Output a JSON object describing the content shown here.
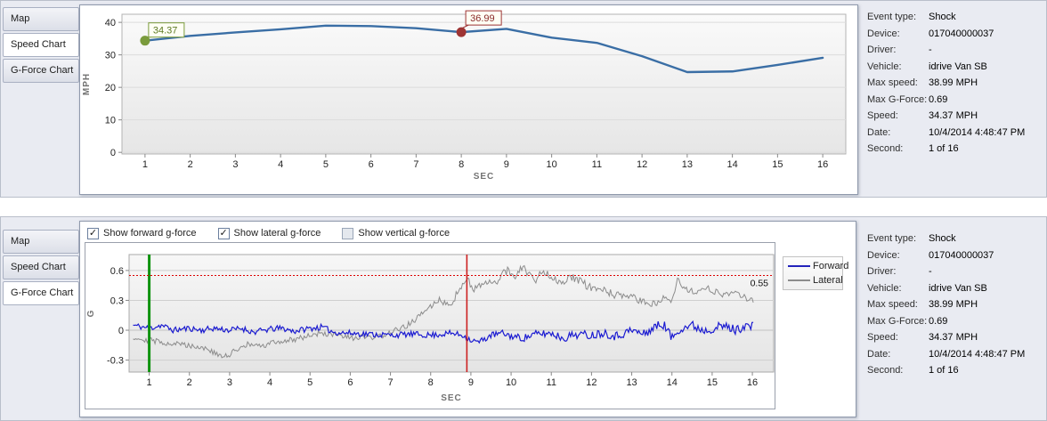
{
  "event_info": {
    "rows": [
      {
        "label": "Event type:",
        "value": "Shock"
      },
      {
        "label": "Device:",
        "value": "017040000037"
      },
      {
        "label": "Driver:",
        "value": "-"
      },
      {
        "label": "Vehicle:",
        "value": "idrive Van SB"
      },
      {
        "label": "Max speed:",
        "value": "38.99 MPH"
      },
      {
        "label": "Max G-Force:",
        "value": "0.69"
      },
      {
        "label": "Speed:",
        "value": "34.37 MPH"
      },
      {
        "label": "Date:",
        "value": "10/4/2014 4:48:47 PM"
      },
      {
        "label": "Second:",
        "value": "1 of 16"
      }
    ]
  },
  "speed_panel": {
    "tabs": [
      {
        "label": "Map",
        "selected": false
      },
      {
        "label": "Speed Chart",
        "selected": true
      },
      {
        "label": "G-Force Chart",
        "selected": false
      }
    ]
  },
  "gforce_panel": {
    "tabs": [
      {
        "label": "Map",
        "selected": false
      },
      {
        "label": "Speed Chart",
        "selected": false
      },
      {
        "label": "G-Force Chart",
        "selected": true
      }
    ],
    "checkboxes": [
      {
        "label": "Show forward g-force",
        "checked": true
      },
      {
        "label": "Show lateral g-force",
        "checked": true
      },
      {
        "label": "Show vertical g-force",
        "checked": false
      }
    ],
    "legend": {
      "position": "right",
      "items": [
        {
          "label": "Forward",
          "color": "#2323bb"
        },
        {
          "label": "Lateral",
          "color": "#8c8c8c"
        }
      ]
    }
  },
  "chart_data": [
    {
      "type": "line",
      "xlabel": "SEC",
      "ylabel": "MPH",
      "x": [
        1,
        2,
        3,
        4,
        5,
        6,
        7,
        8,
        9,
        10,
        11,
        12,
        13,
        14,
        15,
        16
      ],
      "values": [
        34.37,
        35.85,
        36.9,
        37.85,
        38.99,
        38.85,
        38.2,
        36.99,
        38.0,
        35.3,
        33.7,
        29.6,
        24.7,
        24.9,
        26.9,
        29.1
      ],
      "xlim": [
        0.49,
        16.51
      ],
      "ylim": [
        -0.5,
        42.5
      ],
      "xticks": [
        1,
        2,
        3,
        4,
        5,
        6,
        7,
        8,
        9,
        10,
        11,
        12,
        13,
        14,
        15,
        16
      ],
      "yticks": [
        0,
        10,
        20,
        30,
        40
      ],
      "grid": "horizontal",
      "line_color": "#3a6ea5",
      "markers": [
        {
          "x": 1,
          "y": 34.37,
          "label": "34.37",
          "color": "#7a9b3c",
          "text_color": "#5d7a22",
          "box_dx": 4,
          "box_dy": -20
        },
        {
          "x": 8,
          "y": 36.99,
          "label": "36.99",
          "color": "#9e3434",
          "text_color": "#8a2a2a",
          "box_dx": 5,
          "box_dy": -24
        }
      ]
    },
    {
      "type": "line",
      "xlabel": "SEC",
      "ylabel": "G",
      "xlim": [
        0.5,
        16.53
      ],
      "ylim": [
        -0.42,
        0.76
      ],
      "xticks": [
        1,
        2,
        3,
        4,
        5,
        6,
        7,
        8,
        9,
        10,
        11,
        12,
        13,
        14,
        15,
        16
      ],
      "yticks": [
        -0.3,
        0,
        0.3,
        0.6
      ],
      "grid": "horizontal",
      "threshold": {
        "y": 0.55,
        "label": "0.55",
        "color": "#dd0000"
      },
      "vlines": [
        {
          "x": 1,
          "color": "#0f930f",
          "width": 3,
          "name": "current-second-line"
        },
        {
          "x": 8.9,
          "color": "#cc2020",
          "width": 1.6,
          "name": "shock-moment-line"
        }
      ],
      "series": [
        {
          "name": "Forward",
          "color": "#1b1bd1",
          "stroke_width": 1.2,
          "seed": 11,
          "keypoints": [
            [
              0.6,
              0.05
            ],
            [
              1,
              0.02
            ],
            [
              1.3,
              0.05
            ],
            [
              1.6,
              0.0
            ],
            [
              2,
              0.02
            ],
            [
              2.3,
              0.0
            ],
            [
              2.6,
              0.02
            ],
            [
              3,
              0.0
            ],
            [
              3.3,
              0.02
            ],
            [
              3.6,
              -0.02
            ],
            [
              4,
              0.01
            ],
            [
              4.3,
              0.02
            ],
            [
              4.6,
              -0.01
            ],
            [
              5,
              0.02
            ],
            [
              5.3,
              0.03
            ],
            [
              5.6,
              -0.02
            ],
            [
              6,
              -0.03
            ],
            [
              6.5,
              -0.04
            ],
            [
              7,
              -0.05
            ],
            [
              7.5,
              -0.04
            ],
            [
              8,
              -0.05
            ],
            [
              8.5,
              -0.03
            ],
            [
              8.8,
              -0.05
            ],
            [
              9,
              -0.1
            ],
            [
              9.2,
              -0.12
            ],
            [
              9.5,
              -0.05
            ],
            [
              9.8,
              -0.03
            ],
            [
              10,
              -0.06
            ],
            [
              10.3,
              -0.08
            ],
            [
              10.6,
              -0.04
            ],
            [
              11,
              -0.03
            ],
            [
              11.3,
              -0.08
            ],
            [
              11.6,
              -0.04
            ],
            [
              12,
              -0.05
            ],
            [
              12.3,
              -0.02
            ],
            [
              12.6,
              -0.06
            ],
            [
              13,
              0.0
            ],
            [
              13.3,
              -0.04
            ],
            [
              13.6,
              0.04
            ],
            [
              13.8,
              0.06
            ],
            [
              14,
              -0.08
            ],
            [
              14.2,
              0.02
            ],
            [
              14.5,
              0.05
            ],
            [
              14.8,
              0.0
            ],
            [
              15,
              0.02
            ],
            [
              15.3,
              0.04
            ],
            [
              15.6,
              0.0
            ],
            [
              15.8,
              0.05
            ],
            [
              16.05,
              0.03
            ]
          ],
          "noise": [
            [
              0.6,
              0.03
            ],
            [
              9,
              0.03
            ],
            [
              12,
              0.045
            ],
            [
              16.05,
              0.05
            ]
          ]
        },
        {
          "name": "Lateral",
          "color": "#8c8c8c",
          "stroke_width": 1,
          "seed": 29,
          "keypoints": [
            [
              0.6,
              -0.07
            ],
            [
              1,
              -0.1
            ],
            [
              1.5,
              -0.13
            ],
            [
              2,
              -0.15
            ],
            [
              2.4,
              -0.18
            ],
            [
              2.8,
              -0.27
            ],
            [
              3,
              -0.25
            ],
            [
              3.2,
              -0.18
            ],
            [
              3.5,
              -0.14
            ],
            [
              3.8,
              -0.17
            ],
            [
              4,
              -0.13
            ],
            [
              4.5,
              -0.1
            ],
            [
              5,
              -0.05
            ],
            [
              5.3,
              -0.03
            ],
            [
              5.6,
              -0.05
            ],
            [
              6,
              -0.08
            ],
            [
              6.3,
              -0.07
            ],
            [
              6.6,
              -0.08
            ],
            [
              7,
              -0.02
            ],
            [
              7.3,
              0.02
            ],
            [
              7.6,
              0.1
            ],
            [
              8,
              0.24
            ],
            [
              8.2,
              0.3
            ],
            [
              8.5,
              0.27
            ],
            [
              8.8,
              0.45
            ],
            [
              8.9,
              0.52
            ],
            [
              9.1,
              0.42
            ],
            [
              9.3,
              0.45
            ],
            [
              9.6,
              0.48
            ],
            [
              9.9,
              0.6
            ],
            [
              10.1,
              0.55
            ],
            [
              10.3,
              0.63
            ],
            [
              10.6,
              0.5
            ],
            [
              10.8,
              0.6
            ],
            [
              11,
              0.55
            ],
            [
              11.2,
              0.48
            ],
            [
              11.5,
              0.53
            ],
            [
              11.8,
              0.47
            ],
            [
              12,
              0.42
            ],
            [
              12.3,
              0.4
            ],
            [
              12.6,
              0.35
            ],
            [
              13,
              0.33
            ],
            [
              13.3,
              0.28
            ],
            [
              13.6,
              0.26
            ],
            [
              13.8,
              0.35
            ],
            [
              14,
              0.3
            ],
            [
              14.15,
              0.53
            ],
            [
              14.3,
              0.42
            ],
            [
              14.6,
              0.37
            ],
            [
              14.9,
              0.42
            ],
            [
              15.2,
              0.36
            ],
            [
              15.5,
              0.38
            ],
            [
              15.8,
              0.33
            ],
            [
              16.05,
              0.3
            ]
          ],
          "noise": [
            [
              0.6,
              0.03
            ],
            [
              8,
              0.03
            ],
            [
              9,
              0.045
            ],
            [
              12,
              0.04
            ],
            [
              16.05,
              0.03
            ]
          ]
        }
      ]
    }
  ]
}
